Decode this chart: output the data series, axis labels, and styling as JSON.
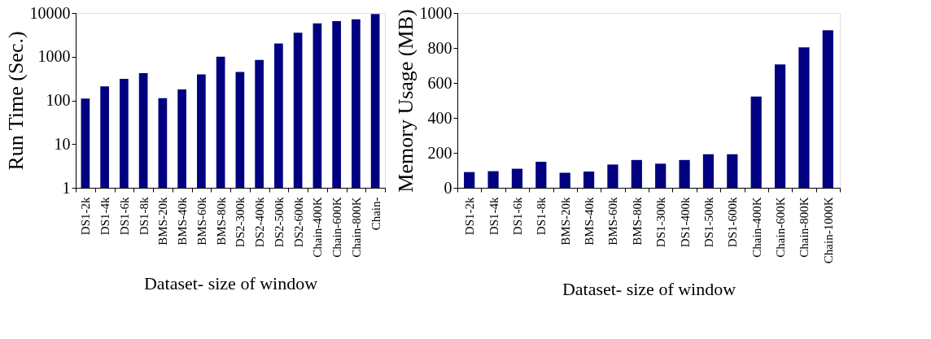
{
  "chart_data": [
    {
      "type": "bar",
      "log": "y",
      "xlabel": "Dataset- size of window",
      "ylabel": "Run Time (Sec.)",
      "color": "#000080",
      "categories": [
        "DS1-2k",
        "DS1-4k",
        "DS1-6k",
        "DS1-8k",
        "BMS-20k",
        "BMS-40k",
        "BMS-60k",
        "BMS-80k",
        "DS2-300k",
        "DS2-400k",
        "DS2-500k",
        "DS2-600k",
        "Chain-400K",
        "Chain-600K",
        "Chain-800K",
        "Chain-"
      ],
      "values": [
        110,
        210,
        310,
        420,
        113,
        178,
        395,
        1000,
        450,
        840,
        2000,
        3550,
        5800,
        6500,
        7200,
        9500
      ],
      "ylim": [
        1,
        10000
      ],
      "yticks": [
        1,
        10,
        100,
        1000,
        10000
      ]
    },
    {
      "type": "bar",
      "xlabel": "Dataset- size of window",
      "ylabel": "Memory Usage (MB)",
      "color": "#000080",
      "categories": [
        "DS1-2k",
        "DS1-4k",
        "DS1-6k",
        "DS1-8k",
        "BMS-20k",
        "BMS-40k",
        "BMS-60k",
        "BMS-80k",
        "DS1-300k",
        "DS1-400k",
        "DS1-500k",
        "DS1-600k",
        "Chain-400K",
        "Chain-600K",
        "Chain-800K",
        "Chain-1000K"
      ],
      "values": [
        90,
        95,
        109,
        149,
        86,
        93,
        133,
        159,
        138,
        159,
        192,
        192,
        522,
        706,
        803,
        901
      ],
      "ylim": [
        0,
        1000
      ],
      "yticks": [
        0,
        200,
        400,
        600,
        800,
        1000
      ]
    }
  ]
}
